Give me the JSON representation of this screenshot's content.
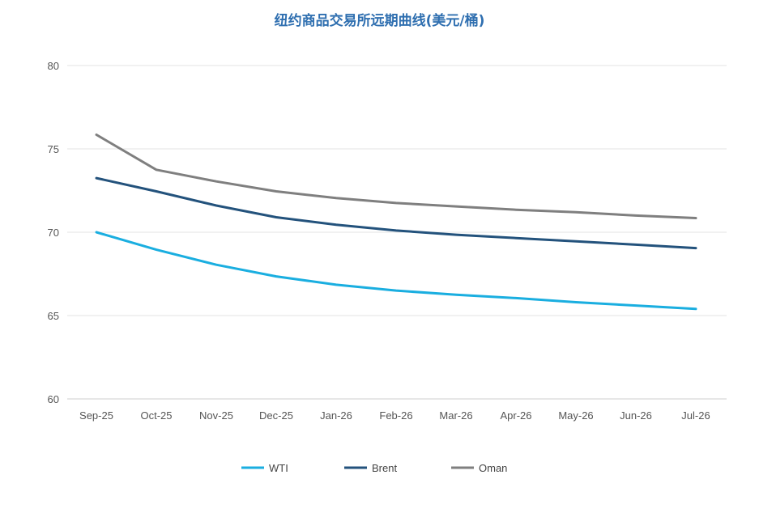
{
  "chart_data": {
    "type": "line",
    "title": "纽约商品交易所远期曲线(美元/桶)",
    "categories": [
      "Sep-25",
      "Oct-25",
      "Nov-25",
      "Dec-25",
      "Jan-26",
      "Feb-26",
      "Mar-26",
      "Apr-26",
      "May-26",
      "Jun-26",
      "Jul-26"
    ],
    "ylim": [
      60,
      80
    ],
    "yticks": [
      "60",
      "65",
      "70",
      "75",
      "80"
    ],
    "grid": true,
    "legend_position": "bottom",
    "series": [
      {
        "name": "WTI",
        "color": "#1aaee0",
        "values": [
          70.0,
          68.95,
          68.05,
          67.35,
          66.85,
          66.5,
          66.25,
          66.05,
          65.8,
          65.6,
          65.4
        ]
      },
      {
        "name": "Brent",
        "color": "#23527c",
        "values": [
          73.25,
          72.45,
          71.6,
          70.9,
          70.45,
          70.1,
          69.85,
          69.65,
          69.45,
          69.25,
          69.05
        ]
      },
      {
        "name": "Oman",
        "color": "#7f7f7f",
        "values": [
          75.85,
          73.75,
          73.05,
          72.45,
          72.05,
          71.75,
          71.55,
          71.35,
          71.2,
          71.0,
          70.85
        ]
      }
    ]
  }
}
